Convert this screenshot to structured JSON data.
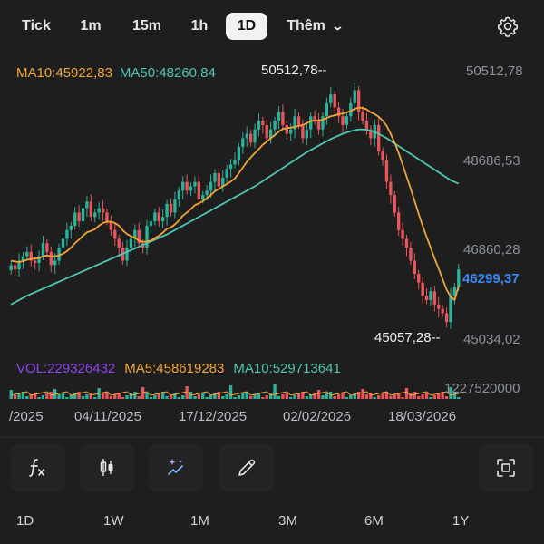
{
  "timeframes": [
    {
      "label": "Tick",
      "active": false
    },
    {
      "label": "1m",
      "active": false
    },
    {
      "label": "15m",
      "active": false
    },
    {
      "label": "1h",
      "active": false
    },
    {
      "label": "1D",
      "active": true
    }
  ],
  "more_label": "Thêm",
  "legend": {
    "ma10": "MA10:45922,83",
    "ma50": "MA50:48260,84"
  },
  "volume_legend": {
    "vol": "VOL:229326432",
    "ma5": "MA5:458619283",
    "ma10": "MA10:529713641"
  },
  "y_axis_labels": [
    "50512,78",
    "48686,53",
    "46860,28",
    "45034,02"
  ],
  "current_price": "46299,37",
  "high_marker": "50512,78--",
  "low_marker": "45057,28--",
  "volume_axis_label": "1227520000",
  "x_axis_labels": [
    "/2025",
    "04/11/2025",
    "17/12/2025",
    "02/02/2026",
    "18/03/2026"
  ],
  "tools": [
    {
      "name": "indicator-fx-icon"
    },
    {
      "name": "candle-type-icon"
    },
    {
      "name": "ai-sparkle-icon"
    },
    {
      "name": "pencil-draw-icon"
    }
  ],
  "range_buttons": [
    "1D",
    "1W",
    "1M",
    "3M",
    "6M",
    "1Y"
  ],
  "colors": {
    "up": "#2bb29a",
    "down": "#e8555a",
    "ma10": "#f0a53a",
    "ma50": "#4fc6b3",
    "vol": "#8e44ec",
    "price_tag": "#3d86f0"
  },
  "chart_data": {
    "type": "candlestick",
    "y_range": [
      44750,
      50800
    ],
    "closes": [
      46400,
      46300,
      46500,
      46600,
      46700,
      46500,
      46450,
      46600,
      46900,
      46700,
      46400,
      46500,
      46800,
      47000,
      47200,
      47300,
      47600,
      47400,
      47700,
      47850,
      47500,
      47600,
      47700,
      47600,
      47400,
      47200,
      47000,
      46800,
      46500,
      46800,
      47000,
      47200,
      46900,
      46800,
      47300,
      47400,
      47600,
      47400,
      47500,
      47800,
      47600,
      47900,
      48100,
      48300,
      48100,
      48200,
      48300,
      47900,
      48000,
      48100,
      48300,
      48500,
      48200,
      48400,
      48600,
      48700,
      48800,
      49100,
      49300,
      49400,
      49200,
      49500,
      49700,
      49600,
      49300,
      49500,
      49700,
      49900,
      49600,
      49400,
      49500,
      49800,
      49600,
      49300,
      49500,
      49800,
      49700,
      49500,
      49800,
      50100,
      50300,
      50000,
      49800,
      49600,
      49800,
      50100,
      50400,
      49900,
      49700,
      49500,
      49300,
      49600,
      49000,
      48800,
      48300,
      48000,
      47600,
      47200,
      47000,
      46800,
      46500,
      46200,
      46000,
      45700,
      45600,
      45800,
      45500,
      45400,
      45300,
      45100,
      45700,
      45900,
      46299.37
    ],
    "ma10": [
      46500,
      46480,
      46470,
      46490,
      46520,
      46540,
      46550,
      46560,
      46600,
      46620,
      46600,
      46600,
      46620,
      46660,
      46720,
      46800,
      46900,
      46980,
      47070,
      47150,
      47180,
      47220,
      47300,
      47360,
      47390,
      47390,
      47360,
      47300,
      47190,
      47110,
      47060,
      47020,
      46960,
      46930,
      46940,
      46960,
      47020,
      47070,
      47140,
      47230,
      47260,
      47330,
      47420,
      47530,
      47600,
      47680,
      47770,
      47810,
      47860,
      47930,
      48000,
      48090,
      48140,
      48200,
      48250,
      48310,
      48380,
      48500,
      48630,
      48760,
      48860,
      48960,
      49050,
      49150,
      49220,
      49300,
      49370,
      49450,
      49510,
      49530,
      49540,
      49560,
      49580,
      49600,
      49640,
      49690,
      49700,
      49710,
      49720,
      49760,
      49800,
      49820,
      49850,
      49860,
      49890,
      49920,
      49970,
      50000,
      49990,
      49960,
      49890,
      49850,
      49790,
      49700,
      49580,
      49400,
      49200,
      48960,
      48700,
      48420,
      48150,
      47860,
      47570,
      47300,
      47040,
      46800,
      46550,
      46320,
      46080,
      45840,
      45680,
      45600,
      45922.83
    ],
    "ma50": [
      45500,
      45550,
      45600,
      45650,
      45700,
      45740,
      45780,
      45820,
      45860,
      45900,
      45940,
      45980,
      46020,
      46060,
      46100,
      46140,
      46180,
      46220,
      46260,
      46300,
      46340,
      46380,
      46420,
      46460,
      46500,
      46540,
      46580,
      46620,
      46660,
      46700,
      46740,
      46780,
      46820,
      46860,
      46900,
      46940,
      46980,
      47020,
      47060,
      47100,
      47150,
      47200,
      47250,
      47300,
      47350,
      47400,
      47450,
      47500,
      47550,
      47600,
      47650,
      47700,
      47750,
      47800,
      47850,
      47900,
      47950,
      48000,
      48050,
      48100,
      48150,
      48200,
      48260,
      48320,
      48380,
      48440,
      48500,
      48560,
      48620,
      48680,
      48740,
      48800,
      48860,
      48920,
      48980,
      49030,
      49080,
      49130,
      49180,
      49230,
      49280,
      49320,
      49360,
      49400,
      49430,
      49460,
      49480,
      49500,
      49500,
      49490,
      49470,
      49440,
      49400,
      49350,
      49300,
      49240,
      49180,
      49120,
      49060,
      49000,
      48940,
      48880,
      48820,
      48760,
      48700,
      48640,
      48580,
      48520,
      48460,
      48400,
      48340,
      48300,
      48260.84
    ]
  }
}
